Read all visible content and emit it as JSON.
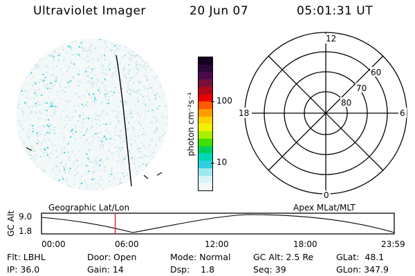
{
  "header": {
    "instrument": "Ultraviolet Imager",
    "date": "20 Jun 07",
    "time": "05:01:31 UT"
  },
  "colorbar": {
    "unit_label": "photon cm⁻²s⁻¹",
    "ticks": [
      "100",
      "10"
    ],
    "colors_top_to_bottom": [
      "#150020",
      "#2a0838",
      "#4a0a4a",
      "#78103a",
      "#b00a1a",
      "#e80000",
      "#ff5a00",
      "#ff9c00",
      "#ffd000",
      "#f0f000",
      "#a8f000",
      "#40e000",
      "#00d060",
      "#00d8b8",
      "#30d0e0",
      "#a0e8f0",
      "#d8f4f8",
      "#f2f8f8"
    ]
  },
  "polar_plot": {
    "mlt_labels": [
      "12",
      "18",
      "6",
      "0"
    ],
    "lat_labels": [
      "60",
      "70",
      "80"
    ]
  },
  "timeline": {
    "left_label": "Geographic Lat/Lon",
    "right_label": "Apex MLat/MLT",
    "axis_label": "GC Alt",
    "y_max": "9.0",
    "y_min": "1.8",
    "time_ticks": [
      "00:00",
      "06:00",
      "12:00",
      "18:00",
      "23:59"
    ],
    "current_time_fraction": 0.209
  },
  "status": {
    "row1": [
      "Flt: LBHL",
      "Door: Open",
      "Mode: Normal",
      "GC Alt: 2.5 Re",
      "GLat:  48.1"
    ],
    "row2": [
      "IP: 36.0",
      "Gain: 14",
      "Dsp:    1.8",
      "Seq: 39",
      "GLon: 347.9"
    ]
  },
  "colors": {
    "marker": "#e02020",
    "speckle_light": "#cfe8ee",
    "speckle_cyan": "#28d0e0"
  }
}
